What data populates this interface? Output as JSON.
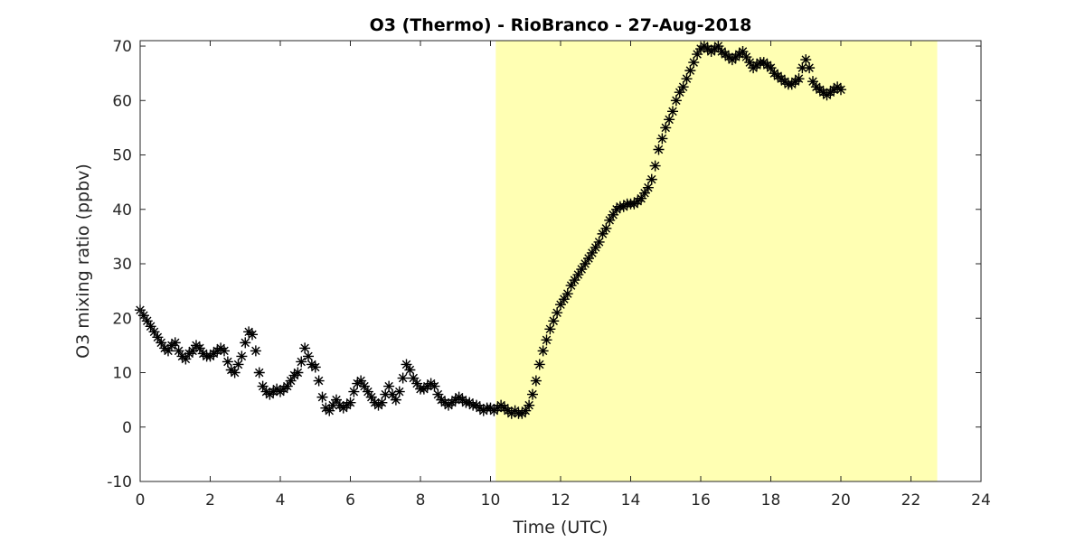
{
  "chart_data": {
    "type": "scatter",
    "title": "O3 (Thermo) - RioBranco - 27-Aug-2018",
    "xlabel": "Time (UTC)",
    "ylabel": "O3 mixing ratio (ppbv)",
    "xlim": [
      0,
      24
    ],
    "ylim": [
      -10,
      71
    ],
    "xticks": [
      0,
      2,
      4,
      6,
      8,
      10,
      12,
      14,
      16,
      18,
      20,
      22,
      24
    ],
    "yticks": [
      -10,
      0,
      10,
      20,
      30,
      40,
      50,
      60,
      70
    ],
    "grid": false,
    "marker": "asterisk",
    "marker_color": "#000000",
    "highlight_region": {
      "x_start": 10.15,
      "x_end": 22.75,
      "color": "#ffffb3"
    },
    "series": [
      {
        "x": [
          0.0,
          0.1,
          0.2,
          0.3,
          0.4,
          0.5,
          0.6,
          0.7,
          0.8,
          0.9,
          1.0,
          1.1,
          1.2,
          1.3,
          1.4,
          1.5,
          1.6,
          1.7,
          1.8,
          1.9,
          2.0,
          2.1,
          2.2,
          2.3,
          2.4,
          2.5,
          2.6,
          2.7,
          2.8,
          2.9,
          3.0,
          3.1,
          3.2,
          3.3,
          3.4,
          3.5,
          3.6,
          3.7,
          3.8,
          3.9,
          4.0,
          4.1,
          4.2,
          4.3,
          4.4,
          4.5,
          4.6,
          4.7,
          4.8,
          4.9,
          5.0,
          5.1,
          5.2,
          5.3,
          5.4,
          5.5,
          5.6,
          5.7,
          5.8,
          5.9,
          6.0,
          6.1,
          6.2,
          6.3,
          6.4,
          6.5,
          6.6,
          6.7,
          6.8,
          6.9,
          7.0,
          7.1,
          7.2,
          7.3,
          7.4,
          7.5,
          7.6,
          7.7,
          7.8,
          7.9,
          8.0,
          8.1,
          8.2,
          8.3,
          8.4,
          8.5,
          8.6,
          8.7,
          8.8,
          8.9,
          9.0,
          9.1,
          9.2,
          9.3,
          9.4,
          9.5,
          9.6,
          9.7,
          9.8,
          9.9,
          10.0,
          10.1,
          10.2,
          10.3,
          10.4,
          10.5,
          10.6,
          10.7,
          10.8,
          10.9,
          11.0,
          11.1,
          11.2,
          11.3,
          11.4,
          11.5,
          11.6,
          11.7,
          11.8,
          11.9,
          12.0,
          12.1,
          12.2,
          12.3,
          12.4,
          12.5,
          12.6,
          12.7,
          12.8,
          12.9,
          13.0,
          13.1,
          13.2,
          13.3,
          13.4,
          13.5,
          13.6,
          13.7,
          13.8,
          13.9,
          14.0,
          14.1,
          14.2,
          14.3,
          14.4,
          14.5,
          14.6,
          14.7,
          14.8,
          14.9,
          15.0,
          15.1,
          15.2,
          15.3,
          15.4,
          15.5,
          15.6,
          15.7,
          15.8,
          15.9,
          16.0,
          16.1,
          16.2,
          16.3,
          16.4,
          16.5,
          16.6,
          16.7,
          16.8,
          16.9,
          17.0,
          17.1,
          17.2,
          17.3,
          17.4,
          17.5,
          17.6,
          17.7,
          17.8,
          17.9,
          18.0,
          18.1,
          18.2,
          18.3,
          18.4,
          18.5,
          18.6,
          18.7,
          18.8,
          18.9,
          19.0,
          19.1,
          19.2,
          19.3,
          19.4,
          19.5,
          19.6,
          19.7,
          19.8,
          19.9,
          20.0
        ],
        "y": [
          21.5,
          20.5,
          19.5,
          18.5,
          17.5,
          16.5,
          15.5,
          14.5,
          14.0,
          15.0,
          15.5,
          14.0,
          13.0,
          12.5,
          13.5,
          14.0,
          15.0,
          14.5,
          13.5,
          13.0,
          13.0,
          13.5,
          14.0,
          14.5,
          14.0,
          12.0,
          10.5,
          10.0,
          11.5,
          13.0,
          15.5,
          17.5,
          17.0,
          14.0,
          10.0,
          7.5,
          6.5,
          6.0,
          6.5,
          7.0,
          6.5,
          7.0,
          7.5,
          8.5,
          9.5,
          10.0,
          12.0,
          14.5,
          13.0,
          11.5,
          11.0,
          8.5,
          5.5,
          3.5,
          3.0,
          4.0,
          5.0,
          4.0,
          3.5,
          4.0,
          4.5,
          6.5,
          8.0,
          8.5,
          7.5,
          6.5,
          5.5,
          4.5,
          4.0,
          4.5,
          6.0,
          7.5,
          6.0,
          5.0,
          6.5,
          9.0,
          11.5,
          10.5,
          9.0,
          8.0,
          7.0,
          7.0,
          7.5,
          8.0,
          7.5,
          6.0,
          5.0,
          4.5,
          4.0,
          4.5,
          5.0,
          5.5,
          5.0,
          4.5,
          4.5,
          4.0,
          4.0,
          3.5,
          3.0,
          3.5,
          3.5,
          3.0,
          3.5,
          4.0,
          3.5,
          3.0,
          2.5,
          3.0,
          2.5,
          2.5,
          3.0,
          4.0,
          6.0,
          8.5,
          11.5,
          14.0,
          16.0,
          18.0,
          19.5,
          21.0,
          22.5,
          23.5,
          24.5,
          26.0,
          27.0,
          28.0,
          29.0,
          30.0,
          31.0,
          32.0,
          33.0,
          34.0,
          35.5,
          36.5,
          38.0,
          39.0,
          40.0,
          40.5,
          40.5,
          41.0,
          41.0,
          41.0,
          41.5,
          42.0,
          43.0,
          44.0,
          45.5,
          48.0,
          51.0,
          53.0,
          55.0,
          56.5,
          58.0,
          60.0,
          61.5,
          62.5,
          64.0,
          65.5,
          67.0,
          68.5,
          69.5,
          70.0,
          69.5,
          69.0,
          69.5,
          70.0,
          69.0,
          68.5,
          68.0,
          67.5,
          68.0,
          68.5,
          69.0,
          68.0,
          67.0,
          66.0,
          66.5,
          67.0,
          67.0,
          66.5,
          66.0,
          65.0,
          64.5,
          64.0,
          63.5,
          63.0,
          63.0,
          63.5,
          64.0,
          66.0,
          67.5,
          66.0,
          63.5,
          62.5,
          62.0,
          61.5,
          61.0,
          61.5,
          62.0,
          62.5,
          62.0
        ]
      }
    ]
  }
}
